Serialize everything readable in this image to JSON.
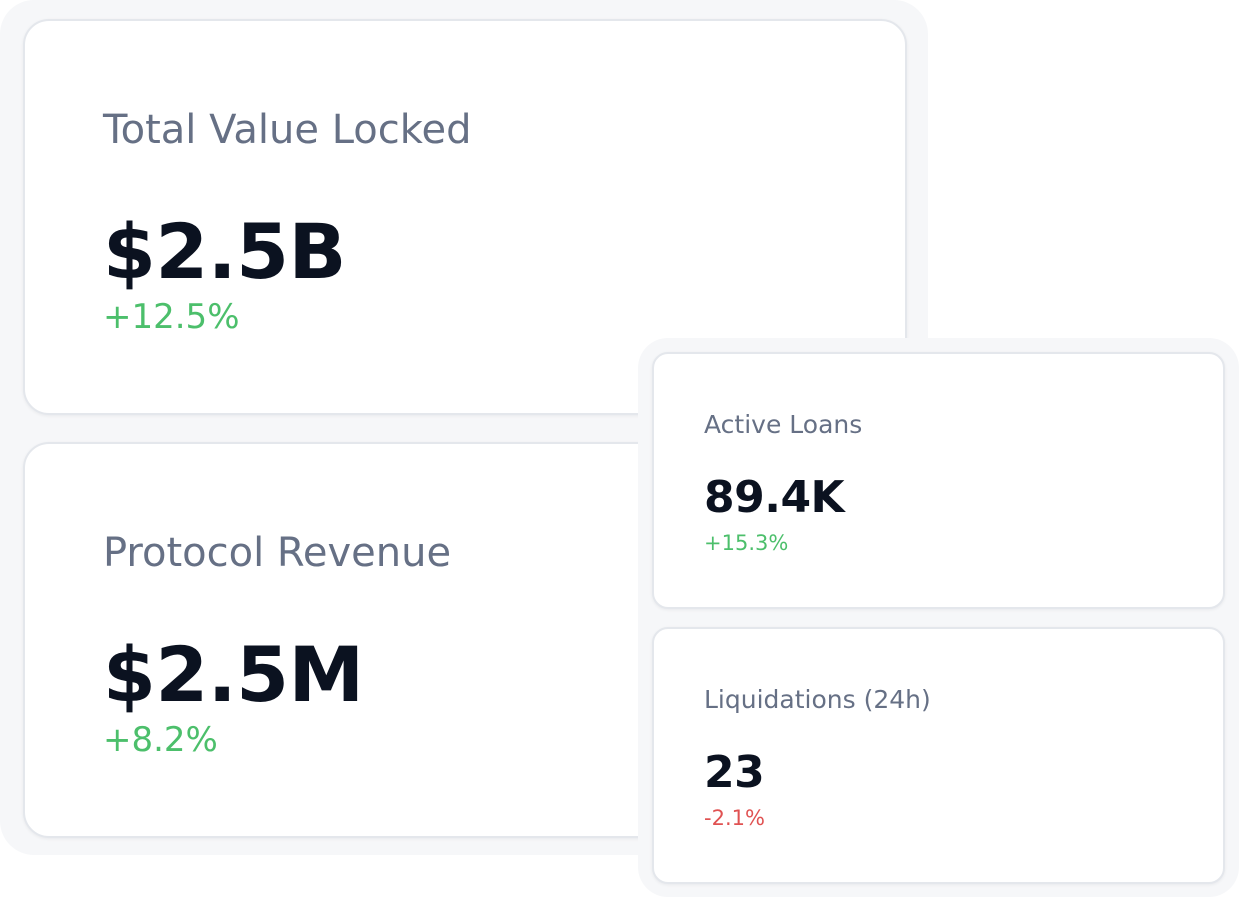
{
  "colors": {
    "positive": "#4cbf6b",
    "negative": "#e05252",
    "label": "#667085",
    "value": "#0b1220"
  },
  "metrics": {
    "tvl": {
      "label": "Total Value Locked",
      "value": "$2.5B",
      "change": "+12.5%"
    },
    "revenue": {
      "label": "Protocol Revenue",
      "value": "$2.5M",
      "change": "+8.2%"
    },
    "loans": {
      "label": "Active Loans",
      "value": "89.4K",
      "change": "+15.3%"
    },
    "liquidations": {
      "label": "Liquidations (24h)",
      "value": "23",
      "change": "-2.1%"
    }
  }
}
